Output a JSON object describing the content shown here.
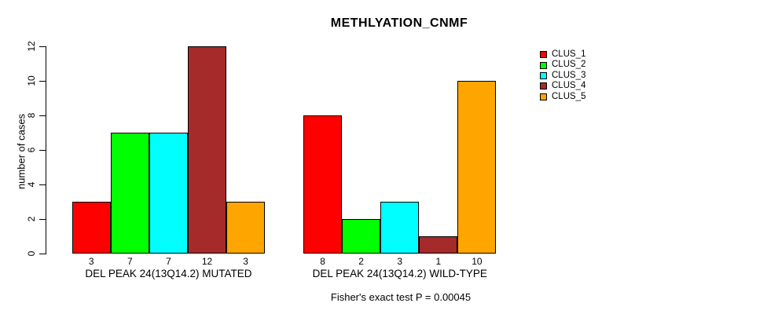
{
  "chart_data": {
    "type": "bar",
    "title": "METHLYATION_CNMF",
    "ylabel": "number of cases",
    "xlabel": "",
    "ylim": [
      0,
      12
    ],
    "yticks": [
      0,
      2,
      4,
      6,
      8,
      10,
      12
    ],
    "grid": false,
    "legend_position": "right",
    "categories": [
      "DEL PEAK 24(13Q14.2) MUTATED",
      "DEL PEAK 24(13Q14.2) WILD-TYPE"
    ],
    "series": [
      {
        "name": "CLUS_1",
        "color": "#FF0000",
        "values": [
          3,
          8
        ]
      },
      {
        "name": "CLUS_2",
        "color": "#00FF00",
        "values": [
          7,
          2
        ]
      },
      {
        "name": "CLUS_3",
        "color": "#00FFFF",
        "values": [
          7,
          3
        ]
      },
      {
        "name": "CLUS_4",
        "color": "#A52A2A",
        "values": [
          12,
          1
        ]
      },
      {
        "name": "CLUS_5",
        "color": "#FFA500",
        "values": [
          3,
          10
        ]
      }
    ],
    "bar_value_labels_shown": true,
    "annotation": "Fisher's exact test P = 0.00045"
  }
}
